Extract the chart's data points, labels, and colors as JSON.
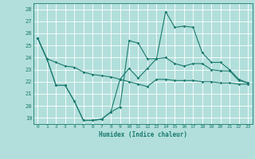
{
  "xlabel": "Humidex (Indice chaleur)",
  "background_color": "#b2dfdb",
  "grid_color": "#ffffff",
  "line_color": "#1a7a6e",
  "xlim": [
    -0.5,
    23.5
  ],
  "ylim": [
    18.5,
    28.5
  ],
  "yticks": [
    19,
    20,
    21,
    22,
    23,
    24,
    25,
    26,
    27,
    28
  ],
  "xticks": [
    0,
    1,
    2,
    3,
    4,
    5,
    6,
    7,
    8,
    9,
    10,
    11,
    12,
    13,
    14,
    15,
    16,
    17,
    18,
    19,
    20,
    21,
    22,
    23
  ],
  "line1_x": [
    0,
    1,
    2,
    3,
    4,
    5,
    6,
    7,
    8,
    9,
    10,
    11,
    12,
    13,
    14,
    15,
    16,
    17,
    18,
    19,
    20,
    21,
    22,
    23
  ],
  "line1_y": [
    25.6,
    23.9,
    23.6,
    23.3,
    23.2,
    22.8,
    22.6,
    22.5,
    22.4,
    22.2,
    23.1,
    22.3,
    23.1,
    23.9,
    24.0,
    23.5,
    23.3,
    23.5,
    23.5,
    23.0,
    22.9,
    22.9,
    22.1,
    21.9
  ],
  "line2_x": [
    0,
    1,
    2,
    3,
    4,
    5,
    6,
    7,
    8,
    9,
    10,
    11,
    12,
    13,
    14,
    15,
    16,
    17,
    18,
    19,
    20,
    21,
    22,
    23
  ],
  "line2_y": [
    25.6,
    23.9,
    21.7,
    21.7,
    20.4,
    18.8,
    18.8,
    18.9,
    19.5,
    19.9,
    25.4,
    25.2,
    23.9,
    23.9,
    27.8,
    26.5,
    26.6,
    26.5,
    24.4,
    23.6,
    23.6,
    23.0,
    22.2,
    21.9
  ],
  "line3_x": [
    0,
    1,
    2,
    3,
    4,
    5,
    6,
    7,
    8,
    9,
    10,
    11,
    12,
    13,
    14,
    15,
    16,
    17,
    18,
    19,
    20,
    21,
    22,
    23
  ],
  "line3_y": [
    25.6,
    23.9,
    21.7,
    21.7,
    20.4,
    18.8,
    18.8,
    18.9,
    19.5,
    22.2,
    22.0,
    21.8,
    21.6,
    22.2,
    22.2,
    22.1,
    22.1,
    22.1,
    22.0,
    22.0,
    21.9,
    21.9,
    21.8,
    21.8
  ]
}
